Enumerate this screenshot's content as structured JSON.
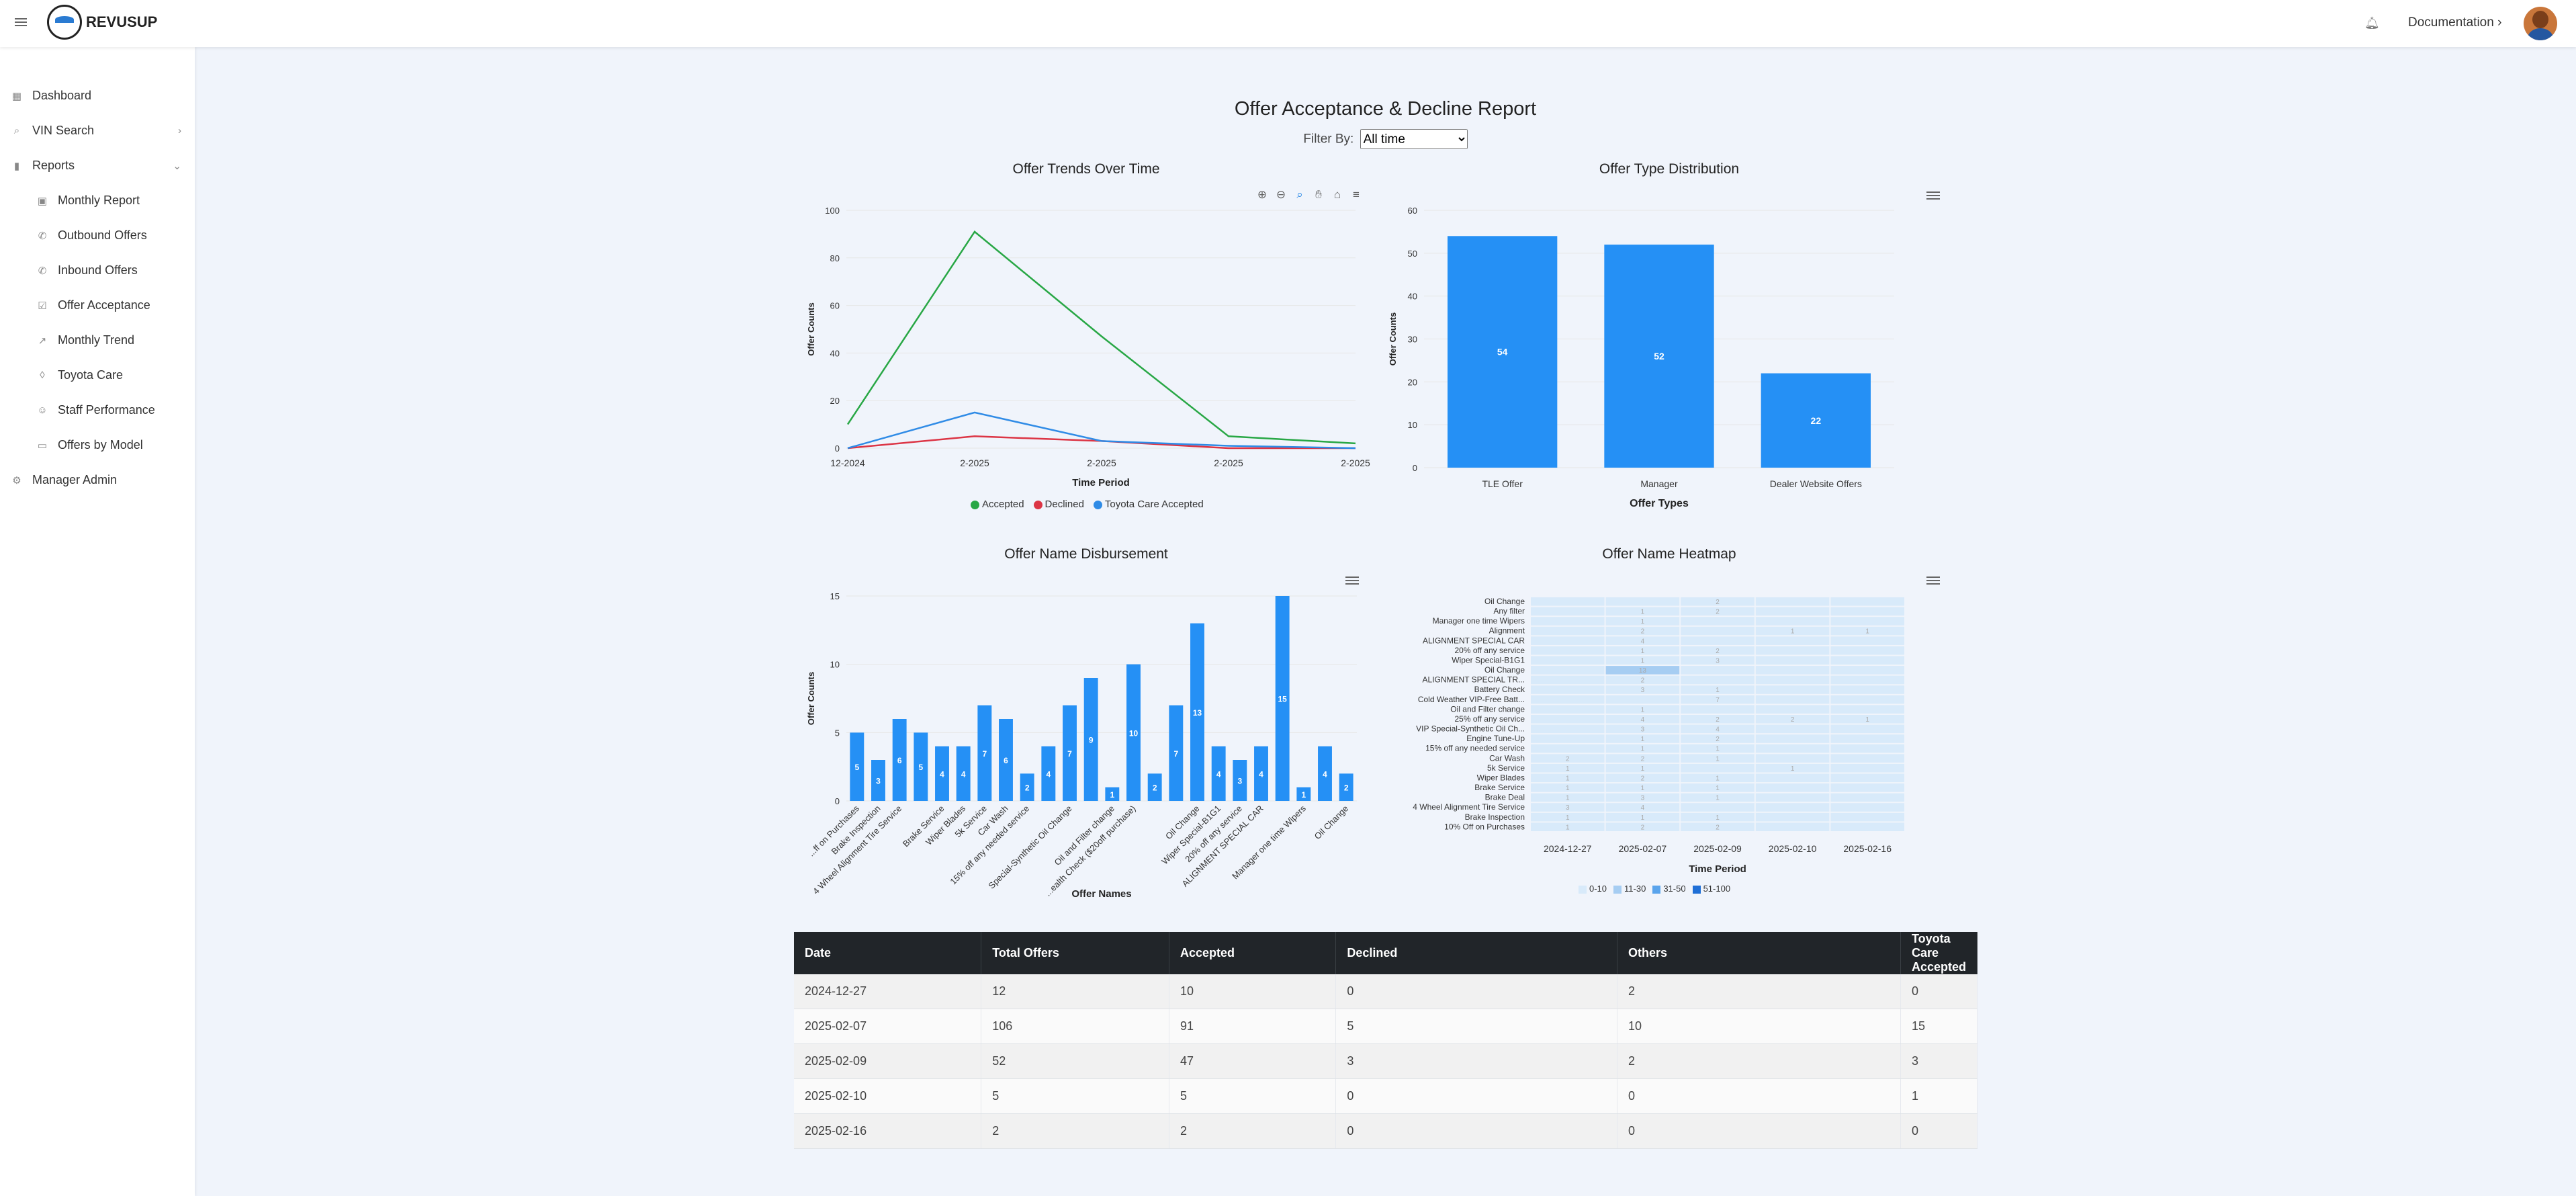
{
  "header": {
    "brand": "REVUSUP",
    "documentation": "Documentation ›"
  },
  "sidebar": {
    "items": [
      {
        "label": "Dashboard",
        "icon": "grid-icon"
      },
      {
        "label": "VIN Search",
        "icon": "search-icon"
      },
      {
        "label": "Reports",
        "icon": "bar-chart-icon"
      },
      {
        "label": "Monthly Report",
        "icon": "calendar-icon"
      },
      {
        "label": "Outbound Offers",
        "icon": "phone-outgoing-icon"
      },
      {
        "label": "Inbound Offers",
        "icon": "phone-incoming-icon"
      },
      {
        "label": "Offer Acceptance",
        "icon": "check-square-icon"
      },
      {
        "label": "Monthly Trend",
        "icon": "trending-up-icon"
      },
      {
        "label": "Toyota Care",
        "icon": "shield-icon"
      },
      {
        "label": "Staff Performance",
        "icon": "users-icon"
      },
      {
        "label": "Offers by Model",
        "icon": "car-icon"
      },
      {
        "label": "Manager Admin",
        "icon": "gear-icon"
      }
    ]
  },
  "page": {
    "title": "Offer Acceptance & Decline Report",
    "filter_label": "Filter By:",
    "filter_value": "All time"
  },
  "colors": {
    "accepted": "#28a745",
    "declined": "#dc3545",
    "toyota": "#2f8be6",
    "bar": "#2590f5"
  },
  "chart_data": [
    {
      "type": "line",
      "title": "Offer Trends Over Time",
      "xlabel": "Time Period",
      "ylabel": "Offer Counts",
      "categories": [
        "12-2024",
        "2-2025",
        "2-2025",
        "2-2025",
        "2-2025"
      ],
      "ylim": [
        0,
        100
      ],
      "yticks": [
        0,
        20,
        40,
        60,
        80,
        100
      ],
      "series": [
        {
          "name": "Accepted",
          "color": "#28a745",
          "values": [
            10,
            91,
            47,
            5,
            2
          ]
        },
        {
          "name": "Declined",
          "color": "#dc3545",
          "values": [
            0,
            5,
            3,
            0,
            0
          ]
        },
        {
          "name": "Toyota Care Accepted",
          "color": "#2f8be6",
          "values": [
            0,
            15,
            3,
            1,
            0
          ]
        }
      ],
      "legend": "bottom"
    },
    {
      "type": "bar",
      "title": "Offer Type Distribution",
      "xlabel": "Offer Types",
      "ylabel": "Offer Counts",
      "categories": [
        "TLE Offer",
        "Manager",
        "Dealer Website Offers"
      ],
      "values": [
        54,
        52,
        22
      ],
      "ylim": [
        0,
        60
      ],
      "yticks": [
        0,
        10,
        20,
        30,
        40,
        50,
        60
      ]
    },
    {
      "type": "bar",
      "title": "Offer Name Disbursement",
      "xlabel": "Offer Names",
      "ylabel": "Offer Counts",
      "categories": [
        "...ff on Purchases",
        "Brake Inspection",
        "4 Wheel Alignment Tire Service",
        "",
        "Brake Service",
        "Wiper Blades",
        "5k Service",
        "Car Wash",
        "15% off any needed service",
        "",
        "Special-Synthetic Oil Change",
        "",
        "Oil and Filter change",
        "...ealth Check ($20off purchase)",
        "",
        "",
        "Oil Change",
        "Wiper Special-B1G1",
        "20% off any service",
        "ALIGNMENT SPECIAL CAR",
        "",
        "Manager one time Wipers",
        "",
        "Oil Change"
      ],
      "values": [
        5,
        3,
        6,
        5,
        4,
        4,
        7,
        6,
        2,
        4,
        7,
        9,
        1,
        10,
        2,
        7,
        13,
        4,
        3,
        4,
        15,
        1,
        4,
        2
      ],
      "ylim": [
        0,
        15
      ],
      "yticks": [
        0,
        5,
        10,
        15
      ]
    },
    {
      "type": "heatmap",
      "title": "Offer Name Heatmap",
      "xlabel": "Time Period",
      "x": [
        "2024-12-27",
        "2025-02-07",
        "2025-02-09",
        "2025-02-10",
        "2025-02-16"
      ],
      "y": [
        "Oil Change",
        "Any filter",
        "Manager one time Wipers",
        "Alignment",
        "ALIGNMENT SPECIAL CAR",
        "20% off any service",
        "Wiper Special-B1G1",
        "Oil Change",
        "ALIGNMENT SPECIAL TR...",
        "Battery Check",
        "Cold Weather VIP-Free Batt...",
        "Oil and Filter change",
        "25% off any service",
        "VIP Special-Synthetic Oil Ch...",
        "Engine Tune-Up",
        "15% off any needed service",
        "Car Wash",
        "5k Service",
        "Wiper Blades",
        "Brake Service",
        "Brake Deal",
        "4 Wheel Alignment Tire Service",
        "Brake Inspection",
        "10% Off on Purchases"
      ],
      "z": [
        [
          0,
          0,
          2,
          0,
          0
        ],
        [
          0,
          1,
          2,
          0,
          0
        ],
        [
          0,
          1,
          0,
          0,
          0
        ],
        [
          0,
          2,
          0,
          1,
          1
        ],
        [
          0,
          4,
          0,
          0,
          0
        ],
        [
          0,
          1,
          2,
          0,
          0
        ],
        [
          0,
          1,
          3,
          0,
          0
        ],
        [
          0,
          13,
          0,
          0,
          0
        ],
        [
          0,
          2,
          0,
          0,
          0
        ],
        [
          0,
          3,
          1,
          0,
          0
        ],
        [
          0,
          0,
          7,
          0,
          0
        ],
        [
          0,
          1,
          0,
          0,
          0
        ],
        [
          0,
          4,
          2,
          2,
          1
        ],
        [
          0,
          3,
          4,
          0,
          0
        ],
        [
          0,
          1,
          2,
          0,
          0
        ],
        [
          0,
          1,
          1,
          0,
          0
        ],
        [
          2,
          2,
          1,
          0,
          0
        ],
        [
          1,
          1,
          0,
          1,
          0
        ],
        [
          1,
          2,
          1,
          0,
          0
        ],
        [
          1,
          1,
          1,
          0,
          0
        ],
        [
          1,
          3,
          1,
          0,
          0
        ],
        [
          3,
          4,
          0,
          0,
          0
        ],
        [
          1,
          1,
          1,
          0,
          0
        ],
        [
          1,
          2,
          2,
          0,
          0
        ]
      ],
      "legend": [
        {
          "label": "0-10",
          "color": "#d8eafa"
        },
        {
          "label": "11-30",
          "color": "#a6cdf2"
        },
        {
          "label": "31-50",
          "color": "#5aa4ec"
        },
        {
          "label": "51-100",
          "color": "#1f6fd6"
        }
      ]
    }
  ],
  "table": {
    "headers": [
      "Date",
      "Total Offers",
      "Accepted",
      "Declined",
      "Others",
      "Toyota Care Accepted"
    ],
    "rows": [
      [
        "2024-12-27",
        "12",
        "10",
        "0",
        "2",
        "0"
      ],
      [
        "2025-02-07",
        "106",
        "91",
        "5",
        "10",
        "15"
      ],
      [
        "2025-02-09",
        "52",
        "47",
        "3",
        "2",
        "3"
      ],
      [
        "2025-02-10",
        "5",
        "5",
        "0",
        "0",
        "1"
      ],
      [
        "2025-02-16",
        "2",
        "2",
        "0",
        "0",
        "0"
      ]
    ]
  }
}
